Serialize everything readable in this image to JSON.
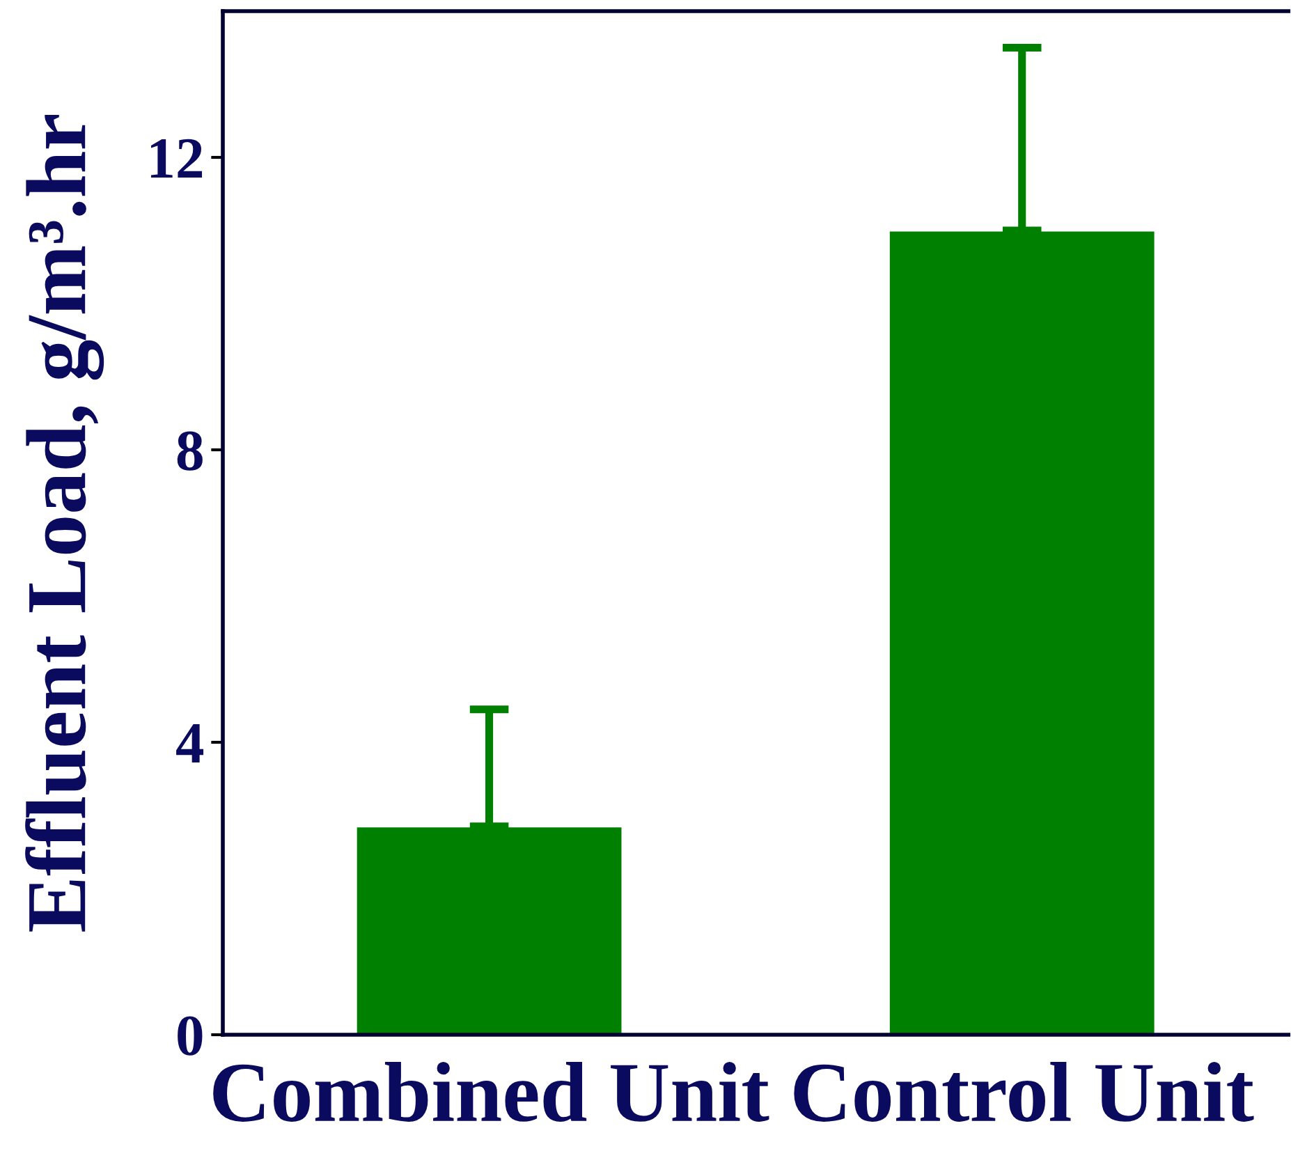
{
  "chart_data": {
    "type": "bar",
    "ylabel": "Effluent Load, g/m³.hr",
    "categories": [
      "Combined Unit",
      "Control Unit"
    ],
    "values": [
      2.85,
      11.0
    ],
    "errors": [
      [
        2.85,
        4.45
      ],
      [
        11.0,
        13.5
      ]
    ],
    "color": "#008000",
    "ylim": [
      0,
      14
    ],
    "yticks": [
      0,
      4,
      8,
      12
    ],
    "grid": false
  }
}
